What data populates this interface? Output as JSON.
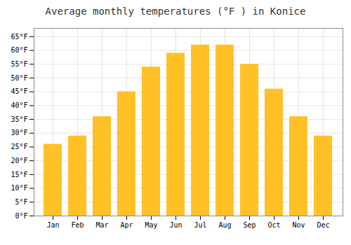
{
  "chart_data": {
    "type": "bar",
    "title": "Average monthly temperatures (°F ) in Konice",
    "categories": [
      "Jan",
      "Feb",
      "Mar",
      "Apr",
      "May",
      "Jun",
      "Jul",
      "Aug",
      "Sep",
      "Oct",
      "Nov",
      "Dec"
    ],
    "values": [
      26,
      29,
      36,
      45,
      54,
      59,
      62,
      62,
      55,
      46,
      36,
      29
    ],
    "color": "#FFC125",
    "ylim": [
      0,
      68
    ],
    "yticks": [
      {
        "value": 0,
        "label": "0°F"
      },
      {
        "value": 5,
        "label": "5°F"
      },
      {
        "value": 10,
        "label": "10°F"
      },
      {
        "value": 15,
        "label": "15°F"
      },
      {
        "value": 20,
        "label": "20°F"
      },
      {
        "value": 25,
        "label": "25°F"
      },
      {
        "value": 30,
        "label": "30°F"
      },
      {
        "value": 35,
        "label": "35°F"
      },
      {
        "value": 40,
        "label": "40°F"
      },
      {
        "value": 45,
        "label": "45°F"
      },
      {
        "value": 50,
        "label": "50°F"
      },
      {
        "value": 55,
        "label": "55°F"
      },
      {
        "value": 60,
        "label": "60°F"
      },
      {
        "value": 65,
        "label": "65°F"
      }
    ],
    "grid": true
  }
}
